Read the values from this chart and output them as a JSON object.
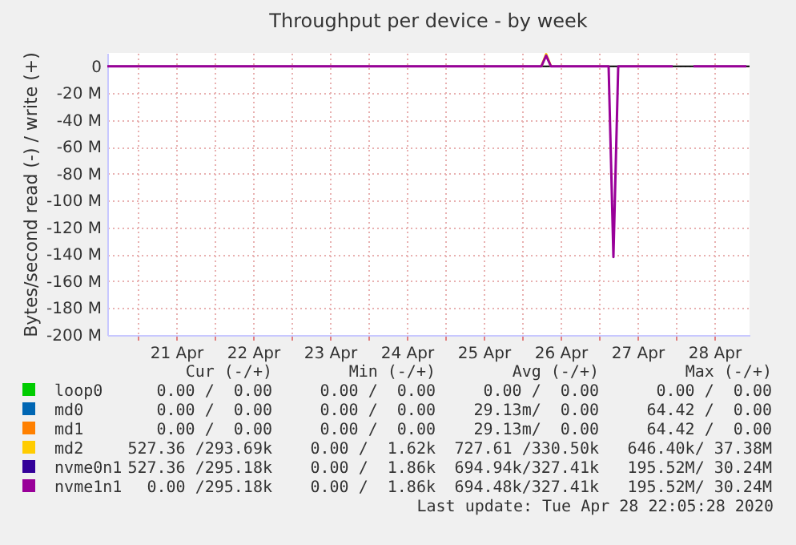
{
  "chart_data": {
    "type": "line",
    "title": "Throughput per device - by week",
    "ylabel": "Bytes/second read (-) / write (+)",
    "x": [
      "2020-04-20T14:30",
      "2020-04-26T06:00",
      "2020-04-26T07:30",
      "2020-04-26T09:00",
      "2020-04-27T03:00",
      "2020-04-27T04:30",
      "2020-04-27T06:00",
      "2020-04-27T23:00",
      "2020-04-28T02:00",
      "2020-04-28T05:30",
      "2020-04-28T22:00"
    ],
    "series": [
      {
        "name": "loop0",
        "color": "#00cc00",
        "values": [
          null,
          null,
          null,
          null,
          null,
          null,
          null,
          null,
          null,
          null,
          null
        ]
      },
      {
        "name": "md0",
        "color": "#0066b3",
        "values": [
          null,
          null,
          null,
          null,
          null,
          null,
          null,
          null,
          null,
          null,
          null
        ]
      },
      {
        "name": "md1",
        "color": "#ff8000",
        "values": [
          null,
          null,
          null,
          null,
          null,
          null,
          null,
          null,
          null,
          null,
          null
        ]
      },
      {
        "name": "md2",
        "color": "#ffcc00",
        "values": [
          null,
          0,
          9,
          0,
          null,
          null,
          null,
          null,
          null,
          null,
          null
        ]
      },
      {
        "name": "nvme0n1",
        "color": "#330099",
        "values": [
          null,
          null,
          null,
          null,
          null,
          null,
          null,
          null,
          null,
          null,
          null
        ]
      },
      {
        "name": "nvme1n1",
        "color": "#990099",
        "values": [
          0,
          0,
          8,
          0,
          0,
          -142,
          0,
          0,
          null,
          0,
          0
        ]
      }
    ],
    "xlim": [
      "2020-04-20T14:30",
      "2020-04-28T23:00"
    ],
    "xticks": [
      {
        "value": "2020-04-21T00:00",
        "label": null
      },
      {
        "value": "2020-04-21T12:00",
        "label": "21 Apr"
      },
      {
        "value": "2020-04-22T00:00",
        "label": null
      },
      {
        "value": "2020-04-22T12:00",
        "label": "22 Apr"
      },
      {
        "value": "2020-04-23T00:00",
        "label": null
      },
      {
        "value": "2020-04-23T12:00",
        "label": "23 Apr"
      },
      {
        "value": "2020-04-24T00:00",
        "label": null
      },
      {
        "value": "2020-04-24T12:00",
        "label": "24 Apr"
      },
      {
        "value": "2020-04-25T00:00",
        "label": null
      },
      {
        "value": "2020-04-25T12:00",
        "label": "25 Apr"
      },
      {
        "value": "2020-04-26T00:00",
        "label": null
      },
      {
        "value": "2020-04-26T12:00",
        "label": "26 Apr"
      },
      {
        "value": "2020-04-27T00:00",
        "label": null
      },
      {
        "value": "2020-04-27T12:00",
        "label": "27 Apr"
      },
      {
        "value": "2020-04-28T00:00",
        "label": null
      },
      {
        "value": "2020-04-28T12:00",
        "label": "28 Apr"
      }
    ],
    "ylim": [
      -200,
      10
    ],
    "yticks": [
      0,
      {
        "value": -20,
        "label": "-20 M"
      },
      {
        "value": -40,
        "label": "-40 M"
      },
      {
        "value": -60,
        "label": "-60 M"
      },
      {
        "value": -80,
        "label": "-80 M"
      },
      {
        "value": -100,
        "label": "-100 M"
      },
      {
        "value": -120,
        "label": "-120 M"
      },
      {
        "value": -140,
        "label": "-140 M"
      },
      {
        "value": -160,
        "label": "-160 M"
      },
      {
        "value": -180,
        "label": "-180 M"
      },
      {
        "value": -200,
        "label": "-200 M"
      }
    ],
    "ref_lines": [
      {
        "axis": "y",
        "value": 0,
        "color": "#000000"
      }
    ],
    "grid": true,
    "legend": "bottom",
    "annotations": [
      "Cur (-/+)",
      "Min (-/+)",
      "Avg (-/+)",
      "Max (-/+)",
      "0.00 /  0.00",
      "0.00 /  0.00",
      "0.00 /  0.00",
      "0.00 /  0.00",
      "0.00 /  0.00",
      "0.00 /  0.00",
      "29.13m/  0.00",
      "64.42 /  0.00",
      "0.00 /  0.00",
      "0.00 /  0.00",
      "29.13m/  0.00",
      "64.42 /  0.00",
      "527.36 /293.69k",
      "0.00 /  1.62k",
      "727.61 /330.50k",
      "646.40k/ 37.38M",
      "527.36 /295.18k",
      "0.00 /  1.86k",
      "694.94k/327.41k",
      "195.52M/ 30.24M",
      "0.00 /295.18k",
      "0.00 /  1.86k",
      "694.48k/327.41k",
      "195.52M/ 30.24M",
      "Last update: Tue Apr 28 22:05:28 2020"
    ]
  }
}
